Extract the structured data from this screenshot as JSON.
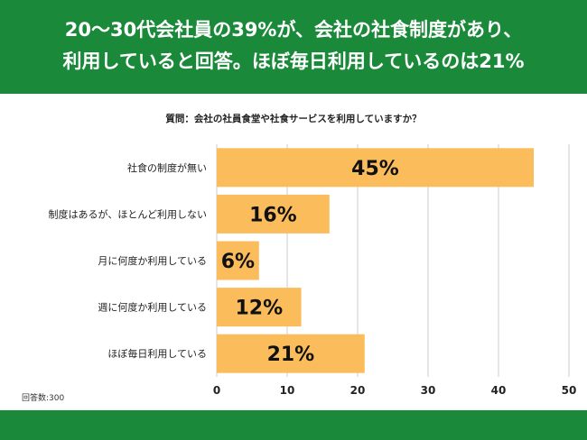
{
  "header": {
    "line1": "20〜30代会社員の39%が、会社の社食制度があり、",
    "line2": "利用していると回答。ほぼ毎日利用しているのは21%"
  },
  "chart_data": {
    "type": "bar",
    "orientation": "horizontal",
    "title": "質問：会社の社員食堂や社食サービスを利用していますか？",
    "categories": [
      "社食の制度が無い",
      "制度はあるが、ほとんど利用しない",
      "月に何度か利用している",
      "週に何度か利用している",
      "ほぼ毎日利用している"
    ],
    "values": [
      45,
      16,
      6,
      12,
      21
    ],
    "value_labels": [
      "45%",
      "16%",
      "6%",
      "12%",
      "21%"
    ],
    "xlim": [
      0,
      50
    ],
    "x_ticks": [
      0,
      10,
      20,
      30,
      40,
      50
    ],
    "x_tick_labels": [
      "0",
      "10",
      "20",
      "30",
      "40",
      "50"
    ],
    "grid": true,
    "bar_color": "#fbbd5c"
  },
  "note": "回答数:300",
  "colors": {
    "brand_green": "#1a8a3a",
    "bar": "#fbbd5c",
    "grid": "#cccccc"
  }
}
